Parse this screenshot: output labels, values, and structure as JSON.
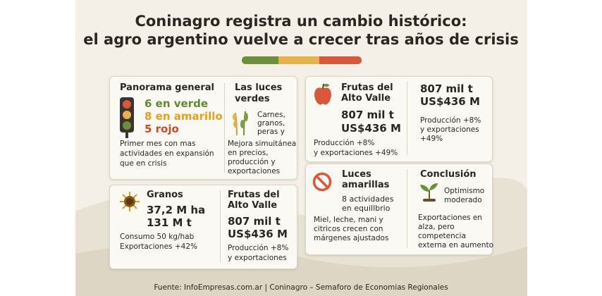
{
  "header": {
    "title": [
      "Coninagro registra un cambio histórico:",
      "el agro argentino vuelve a crecer tras años de crisis"
    ]
  },
  "panorama": {
    "heading": "Panorama general",
    "counts": [
      "6 en verde",
      "8 en amarillo",
      "5 rojo"
    ],
    "note": [
      "Primer mes con mas",
      "actividades en expansión",
      "que en crisis"
    ]
  },
  "luces_verdes": {
    "heading": [
      "Las luces",
      "verdes"
    ],
    "items": [
      "Carnes,",
      "granos,",
      "peras y"
    ],
    "note": [
      "Mejora simuitánea",
      "en precios,",
      "producción y",
      "exportaciones"
    ]
  },
  "granos": {
    "heading": "Granos",
    "figures": [
      "37,2 M ha",
      "131 M t"
    ],
    "note": [
      "Consumo 50 kg/hab",
      "Exportaciones +42%"
    ]
  },
  "frutas_1": {
    "heading": [
      "Frutas del",
      "Alto Valle"
    ],
    "figures": [
      "807 mil t",
      "US$436 M"
    ],
    "note": [
      "Producción +8%",
      "y exportaciones"
    ]
  },
  "frutas_2": {
    "heading": [
      "Frutas del",
      "Alto Valle"
    ],
    "figures": [
      "807 mil t",
      "US$436 M"
    ],
    "note": [
      "Producción +8%",
      "y exportaciones +49%"
    ]
  },
  "frutas_3": {
    "figures": [
      "807 mil t",
      "US$436 M"
    ],
    "note": [
      "Producción +8%",
      "y exportaciones",
      "+49%"
    ]
  },
  "luces_amarillas": {
    "heading": [
      "Luces",
      "amarillas"
    ],
    "summary": [
      "8 actividades",
      "en equillbrio"
    ],
    "note": [
      "Miel, leche, mani y",
      "citricos crecen con",
      "márgenes ajustados"
    ]
  },
  "conclusion": {
    "heading": "Conclusión",
    "summary": [
      "Optimismo",
      "moderado"
    ],
    "note": [
      "Exportaciones en",
      "alza, pero",
      "competencia",
      "externa en aumento"
    ]
  },
  "footer": "Fuente: InfoEmpresas.com.ar | Coninagro – Semaforo de Economias Regionales"
}
